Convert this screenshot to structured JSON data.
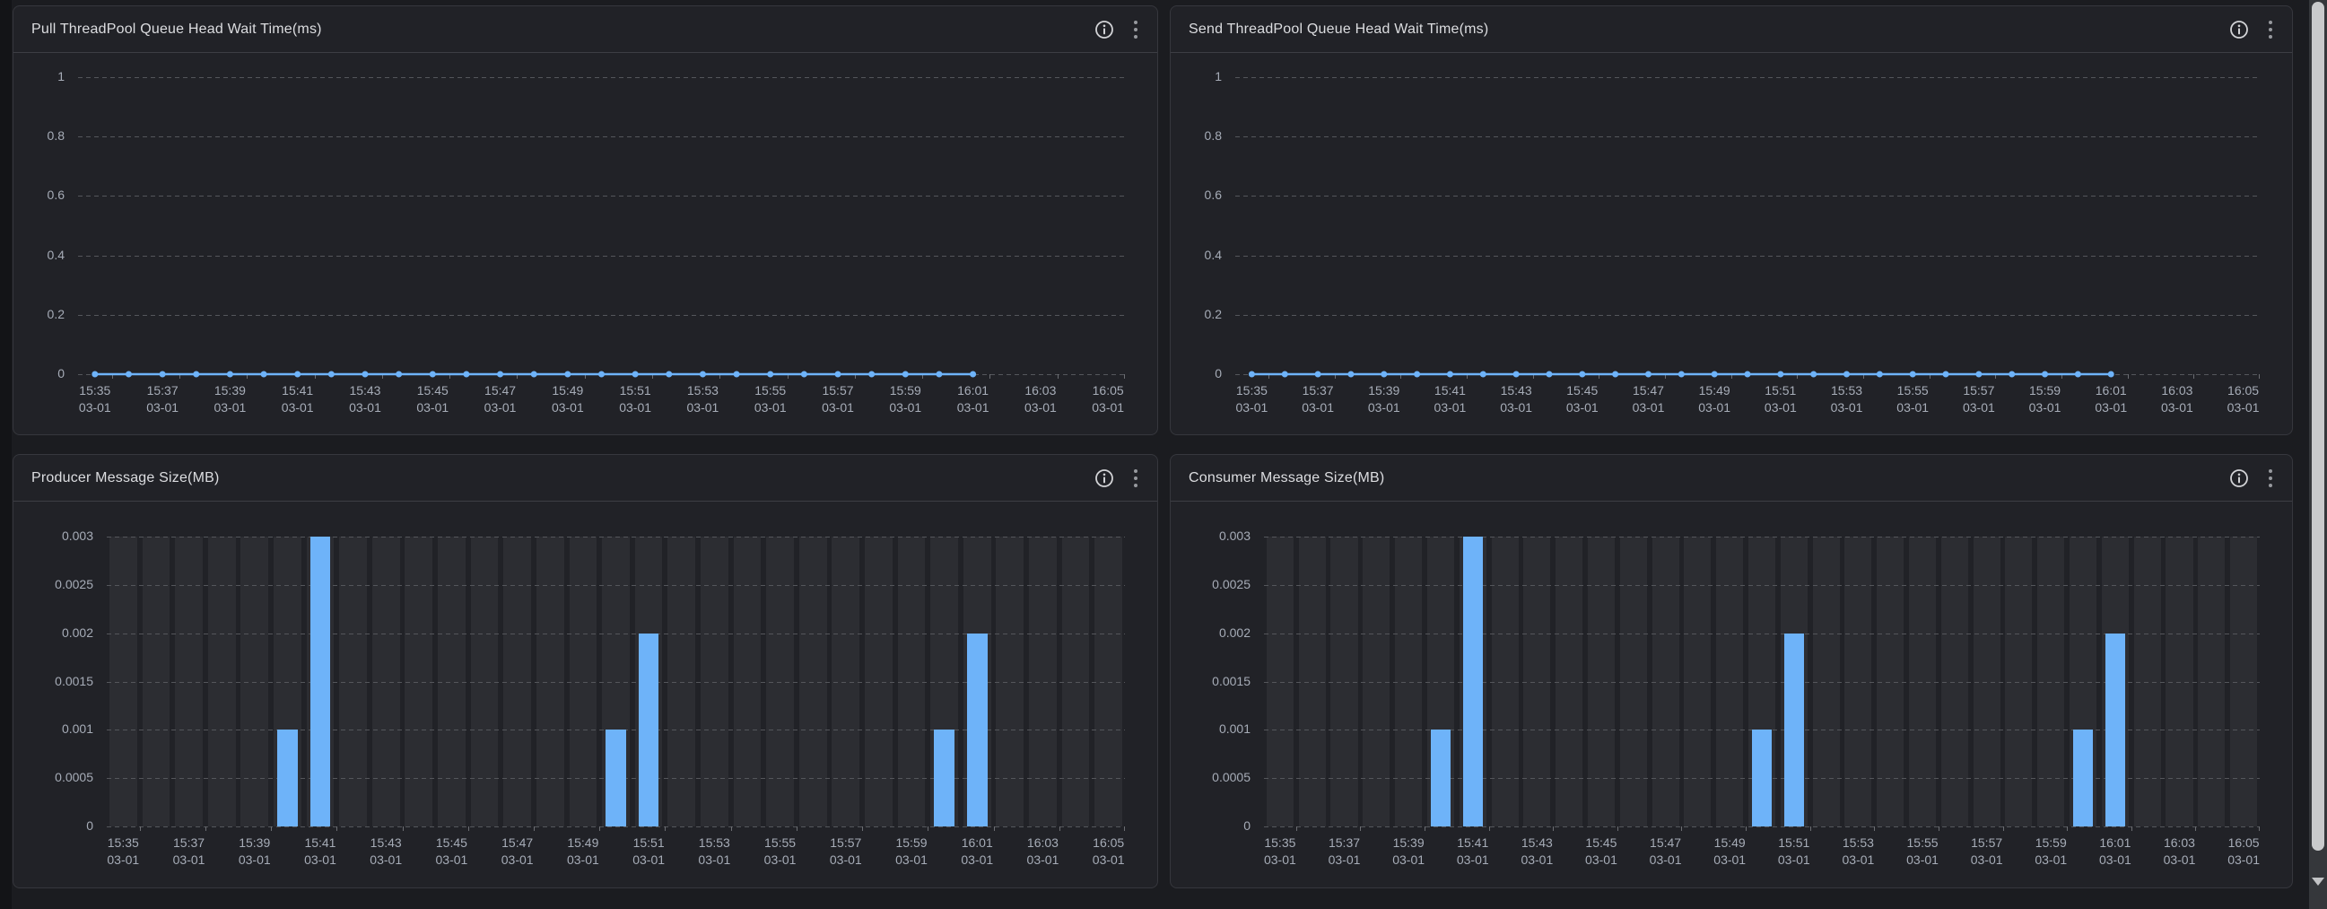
{
  "colors": {
    "accent": "#6eb3f9",
    "stripe": "#2c2d32",
    "grid": "#54565b",
    "axis_label": "#a6acb7",
    "title": "#dcdde0",
    "panel_bg": "#212227",
    "page_bg": "#1b1c20"
  },
  "header_icons": [
    "info-icon",
    "kebab-menu-icon"
  ],
  "scrollbar": {
    "parts": [
      "scrollbar-thumb",
      "scrollbar-down-arrow"
    ]
  },
  "chart_data": [
    {
      "type": "line",
      "title": "Pull ThreadPool Queue Head Wait Time(ms)",
      "x": [
        "15:35",
        "15:36",
        "15:37",
        "15:38",
        "15:39",
        "15:40",
        "15:41",
        "15:42",
        "15:43",
        "15:44",
        "15:45",
        "15:46",
        "15:47",
        "15:48",
        "15:49",
        "15:50",
        "15:51",
        "15:52",
        "15:53",
        "15:54",
        "15:55",
        "15:56",
        "15:57",
        "15:58",
        "15:59",
        "16:00",
        "16:01",
        "16:02",
        "16:03",
        "16:04",
        "16:05"
      ],
      "x_date": "03-01",
      "x_label_interval": 2,
      "values": [
        0,
        0,
        0,
        0,
        0,
        0,
        0,
        0,
        0,
        0,
        0,
        0,
        0,
        0,
        0,
        0,
        0,
        0,
        0,
        0,
        0,
        0,
        0,
        0,
        0,
        0,
        0,
        null,
        null,
        null,
        null
      ],
      "ylim": [
        0,
        1
      ],
      "yticks": [
        "0",
        "0.2",
        "0.4",
        "0.6",
        "0.8",
        "1"
      ],
      "grid": "dashed-horizontal",
      "legend": "none",
      "markers": true
    },
    {
      "type": "line",
      "title": "Send ThreadPool Queue Head Wait Time(ms)",
      "x": [
        "15:35",
        "15:36",
        "15:37",
        "15:38",
        "15:39",
        "15:40",
        "15:41",
        "15:42",
        "15:43",
        "15:44",
        "15:45",
        "15:46",
        "15:47",
        "15:48",
        "15:49",
        "15:50",
        "15:51",
        "15:52",
        "15:53",
        "15:54",
        "15:55",
        "15:56",
        "15:57",
        "15:58",
        "15:59",
        "16:00",
        "16:01",
        "16:02",
        "16:03",
        "16:04",
        "16:05"
      ],
      "x_date": "03-01",
      "x_label_interval": 2,
      "values": [
        0,
        0,
        0,
        0,
        0,
        0,
        0,
        0,
        0,
        0,
        0,
        0,
        0,
        0,
        0,
        0,
        0,
        0,
        0,
        0,
        0,
        0,
        0,
        0,
        0,
        0,
        0,
        null,
        null,
        null,
        null
      ],
      "ylim": [
        0,
        1
      ],
      "yticks": [
        "0",
        "0.2",
        "0.4",
        "0.6",
        "0.8",
        "1"
      ],
      "grid": "dashed-horizontal",
      "legend": "none",
      "markers": true
    },
    {
      "type": "bar",
      "title": "Producer Message Size(MB)",
      "x": [
        "15:35",
        "15:36",
        "15:37",
        "15:38",
        "15:39",
        "15:40",
        "15:41",
        "15:42",
        "15:43",
        "15:44",
        "15:45",
        "15:46",
        "15:47",
        "15:48",
        "15:49",
        "15:50",
        "15:51",
        "15:52",
        "15:53",
        "15:54",
        "15:55",
        "15:56",
        "15:57",
        "15:58",
        "15:59",
        "16:00",
        "16:01",
        "16:02",
        "16:03",
        "16:04",
        "16:05"
      ],
      "x_date": "03-01",
      "x_label_interval": 2,
      "values": [
        0,
        0,
        0,
        0,
        0,
        0.001,
        0.003,
        0,
        0,
        0,
        0,
        0,
        0,
        0,
        0,
        0.001,
        0.002,
        0,
        0,
        0,
        0,
        0,
        0,
        0,
        0,
        0.001,
        0.002,
        0,
        0,
        0,
        0
      ],
      "ylim": [
        0,
        0.003
      ],
      "yticks": [
        "0",
        "0.0005",
        "0.001",
        "0.0015",
        "0.002",
        "0.0025",
        "0.003"
      ],
      "grid": "dashed-horizontal",
      "legend": "none",
      "background_bars": true
    },
    {
      "type": "bar",
      "title": "Consumer Message Size(MB)",
      "x": [
        "15:35",
        "15:36",
        "15:37",
        "15:38",
        "15:39",
        "15:40",
        "15:41",
        "15:42",
        "15:43",
        "15:44",
        "15:45",
        "15:46",
        "15:47",
        "15:48",
        "15:49",
        "15:50",
        "15:51",
        "15:52",
        "15:53",
        "15:54",
        "15:55",
        "15:56",
        "15:57",
        "15:58",
        "15:59",
        "16:00",
        "16:01",
        "16:02",
        "16:03",
        "16:04",
        "16:05"
      ],
      "x_date": "03-01",
      "x_label_interval": 2,
      "values": [
        0,
        0,
        0,
        0,
        0,
        0.001,
        0.003,
        0,
        0,
        0,
        0,
        0,
        0,
        0,
        0,
        0.001,
        0.002,
        0,
        0,
        0,
        0,
        0,
        0,
        0,
        0,
        0.001,
        0.002,
        0,
        0,
        0,
        0
      ],
      "ylim": [
        0,
        0.003
      ],
      "yticks": [
        "0",
        "0.0005",
        "0.001",
        "0.0015",
        "0.002",
        "0.0025",
        "0.003"
      ],
      "grid": "dashed-horizontal",
      "legend": "none",
      "background_bars": true
    }
  ]
}
